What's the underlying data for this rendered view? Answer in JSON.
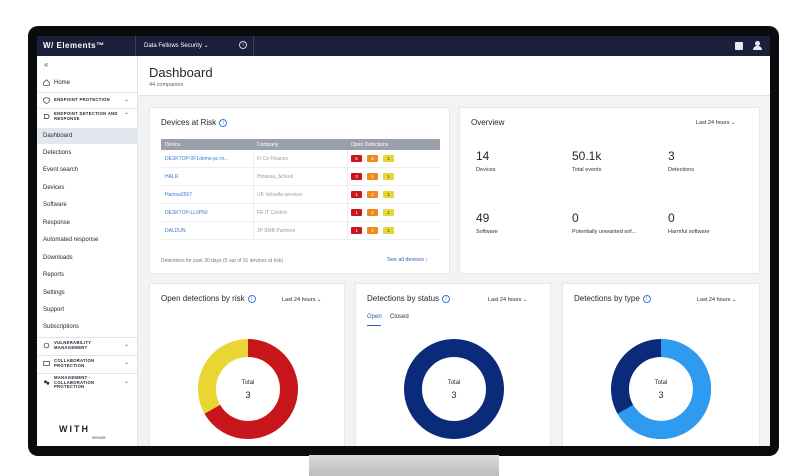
{
  "topbar": {
    "brand": "W/ Elements™",
    "org": "Data Fellows Security ⌄"
  },
  "sidebar": {
    "home": "Home",
    "endpoint_protection": "ENDPOINT PROTECTION",
    "edr": "ENDPOINT DETECTION AND RESPONSE",
    "items": [
      "Dashboard",
      "Detections",
      "Event search",
      "Devices",
      "Software",
      "Response",
      "Automated response",
      "Downloads",
      "Reports",
      "Settings",
      "Support",
      "Subscriptions"
    ],
    "vuln": "VULNERABILITY MANAGEMENT",
    "collab": "COLLABORATION PROTECTION",
    "mgmt": "MANAGEMENT - COLLABORATION PROTECTION",
    "logo": "WITH",
    "logo_sub": "secure"
  },
  "page": {
    "title": "Dashboard",
    "subtitle": "44 companies"
  },
  "risk": {
    "title": "Devices at Risk",
    "headers": [
      "Device",
      "Company",
      "Open Detections"
    ],
    "rows": [
      {
        "device": "DESKTOP-0F1demo-pc-m...",
        "company": "Fi Co Finance",
        "counts": [
          "6",
          "5",
          "1"
        ]
      },
      {
        "device": "HALR",
        "company": "Hinassa_School",
        "counts": [
          "3",
          "1",
          "1"
        ]
      },
      {
        "device": "Hamsa2567",
        "company": "UK Veloella services",
        "counts": [
          "1",
          "2",
          "1"
        ]
      },
      {
        "device": "DESKTOP-LL0P50",
        "company": "FE IT Control",
        "counts": [
          "1",
          "1",
          "1"
        ]
      },
      {
        "device": "DALDUN",
        "company": "JP SMB Partners",
        "counts": [
          "1",
          "1",
          "1"
        ]
      }
    ],
    "footer": "Detections for past 30 days (5 out of 31 devices at risk)",
    "see_all": "See all devices"
  },
  "overview": {
    "title": "Overview",
    "range": "Last 24 hours ⌄",
    "stats": [
      {
        "value": "14",
        "label": "Devices"
      },
      {
        "value": "50.1k",
        "label": "Total events"
      },
      {
        "value": "3",
        "label": "Detections"
      },
      {
        "value": "49",
        "label": "Software"
      },
      {
        "value": "0",
        "label": "Potentially unwanted sof..."
      },
      {
        "value": "0",
        "label": "Harmful software"
      }
    ]
  },
  "by_risk": {
    "title": "Open detections by risk",
    "range": "Last 24 hours ⌄",
    "total_label": "Total",
    "total": "3"
  },
  "by_status": {
    "title": "Detections by status",
    "range": "Last 24 hours ⌄",
    "tab_open": "Open",
    "tab_closed": "Closed",
    "total_label": "Total",
    "total": "3"
  },
  "by_type": {
    "title": "Detections by type",
    "range": "Last 24 hours ⌄",
    "total_label": "Total",
    "total": "3"
  },
  "colors": {
    "navy": "#1b1f3a",
    "red": "#c8161d",
    "yellow": "#e9d632",
    "dark_blue": "#0a2a7a",
    "light_blue": "#2e9bf0"
  }
}
